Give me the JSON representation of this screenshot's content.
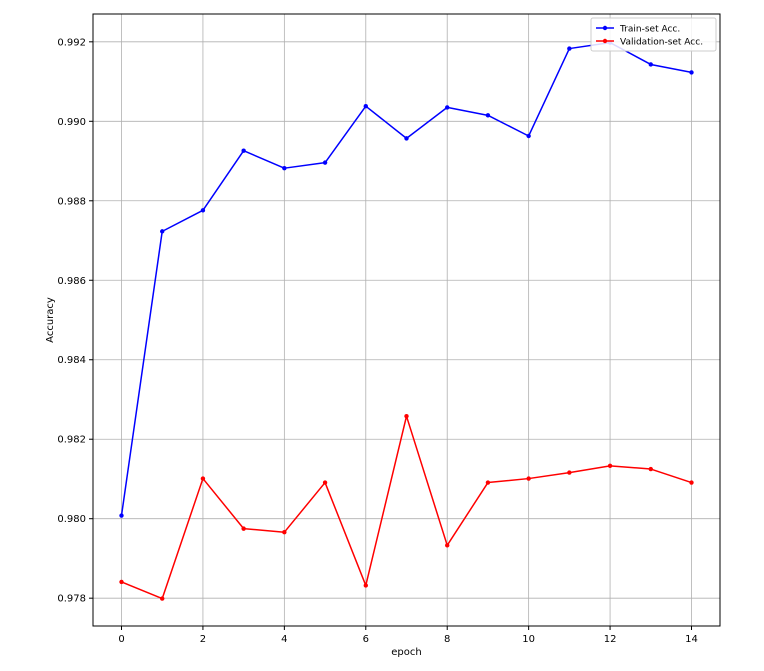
{
  "chart_data": {
    "type": "line",
    "title": "",
    "xlabel": "epoch",
    "ylabel": "Accuracy",
    "xlim": [
      -0.7,
      14.7
    ],
    "ylim": [
      0.9773,
      0.9927
    ],
    "xticks": [
      0,
      2,
      4,
      6,
      8,
      10,
      12,
      14
    ],
    "xtick_labels": [
      "0",
      "2",
      "4",
      "6",
      "8",
      "10",
      "12",
      "14"
    ],
    "yticks": [
      0.978,
      0.98,
      0.982,
      0.984,
      0.986,
      0.988,
      0.99,
      0.992
    ],
    "ytick_labels": [
      "0.978",
      "0.980",
      "0.982",
      "0.984",
      "0.986",
      "0.988",
      "0.990",
      "0.992"
    ],
    "grid": true,
    "legend_position": "top-right",
    "x": [
      0,
      1,
      2,
      3,
      4,
      5,
      6,
      7,
      8,
      9,
      10,
      11,
      12,
      13,
      14
    ],
    "series": [
      {
        "name": "Train-set Acc.",
        "color": "#0000ff",
        "values": [
          0.98008,
          0.98723,
          0.98776,
          0.98926,
          0.98882,
          0.98896,
          0.99038,
          0.98957,
          0.99035,
          0.99015,
          0.98963,
          0.99183,
          0.99198,
          0.99143,
          0.99123
        ]
      },
      {
        "name": "Validation-set Acc.",
        "color": "#ff0000",
        "values": [
          0.97841,
          0.97799,
          0.98101,
          0.97975,
          0.97966,
          0.98091,
          0.97832,
          0.98258,
          0.97933,
          0.98091,
          0.98101,
          0.98116,
          0.98133,
          0.98125,
          0.98091
        ]
      }
    ]
  }
}
